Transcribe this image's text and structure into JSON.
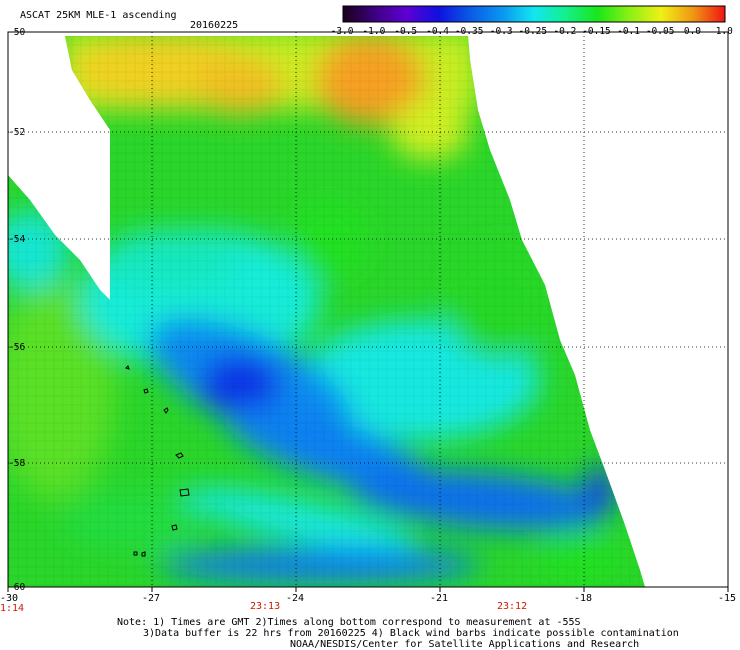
{
  "header": {
    "title": "ASCAT 25KM MLE-1 ascending",
    "date": "20160225"
  },
  "colorbar": {
    "labels": [
      "-3.0",
      "-1.0",
      "-0.5",
      "-0.4",
      "-0.35",
      "-0.3",
      "-0.25",
      "-0.2",
      "-0.15",
      "-0.1",
      "-0.05",
      "0.0",
      "1.0"
    ],
    "colors": [
      "#1a001a",
      "#3d0080",
      "#5e00d4",
      "#1010e0",
      "#0a5ae6",
      "#0a96f0",
      "#12e6f0",
      "#12f08c",
      "#1ae61a",
      "#8cf014",
      "#f0f014",
      "#f09614",
      "#f01414"
    ]
  },
  "axes": {
    "x_ticks": [
      "-30",
      "-27",
      "-24",
      "-21",
      "-18",
      "-15"
    ],
    "y_ticks": [
      "-50",
      "-52",
      "-54",
      "-56",
      "-58",
      "-60"
    ],
    "time_labels": [
      "1:14",
      "23:13",
      "23:12"
    ]
  },
  "notes": {
    "line1": "Note: 1) Times are GMT 2)Times along bottom correspond to measurement at -55S",
    "line2": "3)Data buffer is 22 hrs from 20160225 4) Black wind barbs indicate possible contamination",
    "line3": "NOAA/NESDIS/Center for Satellite Applications and Research"
  },
  "palette": {
    "orange": "#f5a623",
    "yellow": "#f0f014",
    "yellowgreen": "#8cf014",
    "green": "#1ae61a",
    "cyan": "#12f0f0",
    "lightblue": "#0aa0f0",
    "blue": "#0a5ae6",
    "deepblue": "#1010e0",
    "time_red": "#cc1a00"
  }
}
